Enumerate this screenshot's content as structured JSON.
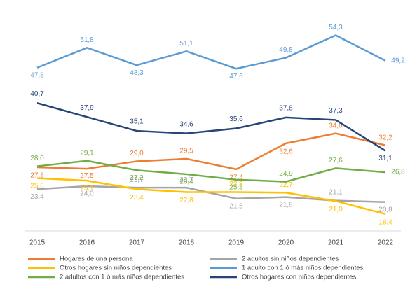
{
  "chart_data": {
    "type": "line",
    "categories": [
      "2015",
      "2016",
      "2017",
      "2018",
      "2019",
      "2020",
      "2021",
      "2022"
    ],
    "ylim": [
      15,
      60
    ],
    "legend": "bottom",
    "series": [
      {
        "name": "Hogares de una persona",
        "color": "#ED7D31",
        "values": [
          27.8,
          27.5,
          29.0,
          29.5,
          27.4,
          32.6,
          34.6,
          32.2
        ],
        "value_labels": [
          "27,8",
          "27,5",
          "29,0",
          "29,5",
          "27,4",
          "32,6",
          "34,6",
          "32,2"
        ]
      },
      {
        "name": "2 adultos sin niños dependientes",
        "color": "#A5A5A5",
        "values": [
          23.4,
          24.0,
          23.7,
          23.7,
          21.5,
          21.8,
          21.1,
          20.8
        ],
        "value_labels": [
          "23,4",
          "24,0",
          "23,7",
          "23,7",
          "21,5",
          "21,8",
          "21,1",
          "20,8"
        ]
      },
      {
        "name": "Otros hogares sin niños dependientes",
        "color": "#FFC000",
        "values": [
          25.6,
          25.1,
          23.4,
          22.8,
          22.8,
          22.7,
          21.0,
          18.4
        ],
        "value_labels": [
          "25,6",
          "25,1",
          "23,4",
          "22,8",
          "22,8",
          "22,7",
          "21,0",
          "18,4"
        ]
      },
      {
        "name": "1 adulto con 1 ó más niños dependientes",
        "color": "#5B9BD5",
        "values": [
          47.8,
          51.8,
          48.3,
          51.1,
          47.6,
          49.8,
          54.3,
          49.2
        ],
        "value_labels": [
          "47,8",
          "51,8",
          "48,3",
          "51,1",
          "47,6",
          "49,8",
          "54,3",
          "49,2"
        ]
      },
      {
        "name": "2 adultos con 1 ó más niños dependientes",
        "color": "#70AD47",
        "values": [
          28.0,
          29.1,
          27.2,
          26.4,
          25.3,
          24.9,
          27.6,
          26.8
        ],
        "value_labels": [
          "28,0",
          "29,1",
          "27,2",
          "26,4",
          "25,3",
          "24,9",
          "27,6",
          "26,8"
        ]
      },
      {
        "name": "Otros hogares con niños dependientes",
        "color": "#264478",
        "values": [
          40.7,
          37.9,
          35.1,
          34.6,
          35.6,
          37.8,
          37.3,
          31.1
        ],
        "value_labels": [
          "40,7",
          "37,9",
          "35,1",
          "34,6",
          "35,6",
          "37,8",
          "37,3",
          "31,1"
        ]
      }
    ]
  }
}
